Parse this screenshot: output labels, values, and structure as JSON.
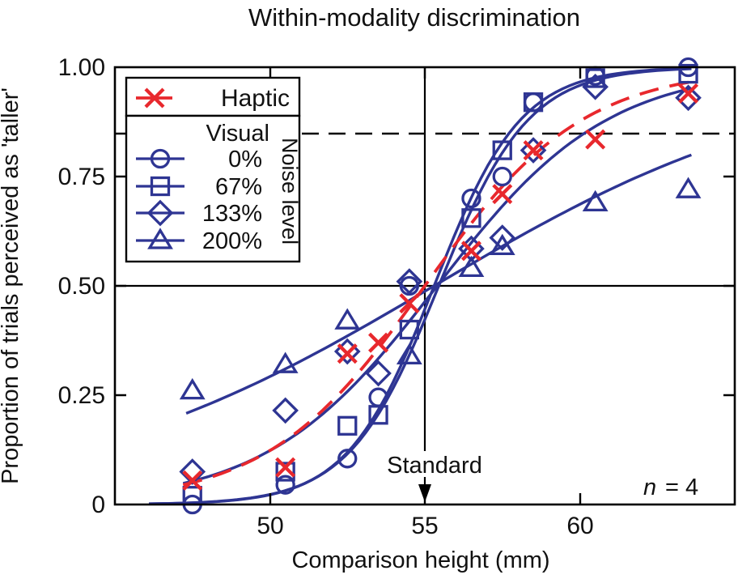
{
  "title": "Within-modality discrimination",
  "axes": {
    "x": {
      "label": "Comparison height (mm)",
      "tick_labels": [
        "50",
        "55",
        "60"
      ],
      "tick_values": [
        50,
        55,
        60
      ],
      "range": [
        45,
        65
      ]
    },
    "y": {
      "label": "Proportion of trials perceived as 'taller'",
      "tick_labels": [
        "1.00",
        "0.75",
        "0.50",
        "0.25",
        "0"
      ],
      "tick_values": [
        1.0,
        0.75,
        0.5,
        0.25,
        0
      ],
      "range": [
        0,
        1
      ]
    }
  },
  "legend": {
    "haptic_label": "Haptic",
    "visual_label": "Visual",
    "noise_axis_label": "Noise level",
    "entries": [
      {
        "label": "0%",
        "marker": "circle"
      },
      {
        "label": "67%",
        "marker": "square"
      },
      {
        "label": "133%",
        "marker": "diamond"
      },
      {
        "label": "200%",
        "marker": "triangle"
      }
    ]
  },
  "annotations": {
    "standard_label": "Standard",
    "standard_x_mm": 55,
    "n_symbol": "n",
    "n_value": "= 4",
    "threshold_level": 0.848,
    "chance_level": 0.5
  },
  "colors": {
    "haptic": "#e8282d",
    "visual": "#2e3593",
    "frame": "#000000",
    "text": "#111111"
  },
  "chart_data": {
    "type": "scatter",
    "title": "Within-modality discrimination",
    "xlabel": "Comparison height (mm)",
    "ylabel": "Proportion of trials perceived as 'taller'",
    "xlim": [
      45,
      65
    ],
    "ylim": [
      0,
      1
    ],
    "grid": false,
    "legend_position": "upper-left",
    "reference_lines": {
      "horizontal_solid": 0.5,
      "horizontal_dashed": 0.848,
      "vertical_standard": 55
    },
    "series": [
      {
        "name": "Haptic",
        "marker": "x",
        "color": "haptic",
        "line": "dashed",
        "fit": {
          "model": "logistic",
          "mu": 55.0,
          "s": 2.55,
          "from": 47.2,
          "to": 63.6
        },
        "points": [
          [
            47.5,
            0.055
          ],
          [
            50.5,
            0.085
          ],
          [
            52.5,
            0.345
          ],
          [
            53.5,
            0.37
          ],
          [
            54.5,
            0.46
          ],
          [
            56.5,
            0.58
          ],
          [
            57.5,
            0.71
          ],
          [
            58.5,
            0.81
          ],
          [
            60.5,
            0.835
          ],
          [
            63.5,
            0.94
          ]
        ]
      },
      {
        "name": "Visual 0% noise",
        "marker": "circle",
        "color": "visual",
        "line": "solid",
        "fit": {
          "model": "logistic",
          "mu": 55.3,
          "s": 1.4,
          "from": 46.1,
          "to": 63.6
        },
        "points": [
          [
            47.5,
            0.0
          ],
          [
            50.5,
            0.045
          ],
          [
            52.5,
            0.105
          ],
          [
            53.5,
            0.245
          ],
          [
            54.5,
            0.5
          ],
          [
            56.5,
            0.7
          ],
          [
            57.5,
            0.75
          ],
          [
            58.5,
            0.92
          ],
          [
            60.5,
            0.98
          ],
          [
            63.5,
            1.0
          ]
        ]
      },
      {
        "name": "Visual 67% noise",
        "marker": "square",
        "color": "visual",
        "line": "solid",
        "fit": {
          "model": "logistic",
          "mu": 55.45,
          "s": 1.45,
          "from": 46.1,
          "to": 63.6
        },
        "points": [
          [
            47.5,
            0.02
          ],
          [
            50.5,
            0.075
          ],
          [
            52.5,
            0.18
          ],
          [
            53.5,
            0.205
          ],
          [
            54.5,
            0.4
          ],
          [
            56.5,
            0.655
          ],
          [
            57.5,
            0.81
          ],
          [
            58.5,
            0.92
          ],
          [
            60.5,
            0.975
          ],
          [
            63.5,
            0.985
          ]
        ]
      },
      {
        "name": "Visual 133% noise",
        "marker": "diamond",
        "color": "visual",
        "line": "solid",
        "fit": {
          "model": "logistic",
          "mu": 55.4,
          "s": 2.75,
          "from": 47.2,
          "to": 63.6
        },
        "points": [
          [
            47.5,
            0.075
          ],
          [
            50.5,
            0.215
          ],
          [
            52.5,
            0.35
          ],
          [
            53.5,
            0.3
          ],
          [
            54.5,
            0.51
          ],
          [
            56.5,
            0.585
          ],
          [
            57.5,
            0.61
          ],
          [
            58.5,
            0.81
          ],
          [
            60.5,
            0.955
          ],
          [
            63.5,
            0.93
          ]
        ]
      },
      {
        "name": "Visual 200% noise",
        "marker": "triangle",
        "color": "visual",
        "line": "solid",
        "fit": {
          "model": "logistic",
          "mu": 55.3,
          "s": 6.0,
          "from": 47.3,
          "to": 63.6
        },
        "points": [
          [
            47.5,
            0.26
          ],
          [
            50.5,
            0.32
          ],
          [
            52.5,
            0.42
          ],
          [
            54.5,
            0.34
          ],
          [
            56.5,
            0.54
          ],
          [
            57.5,
            0.59
          ],
          [
            60.5,
            0.69
          ],
          [
            63.5,
            0.72
          ]
        ]
      }
    ]
  }
}
